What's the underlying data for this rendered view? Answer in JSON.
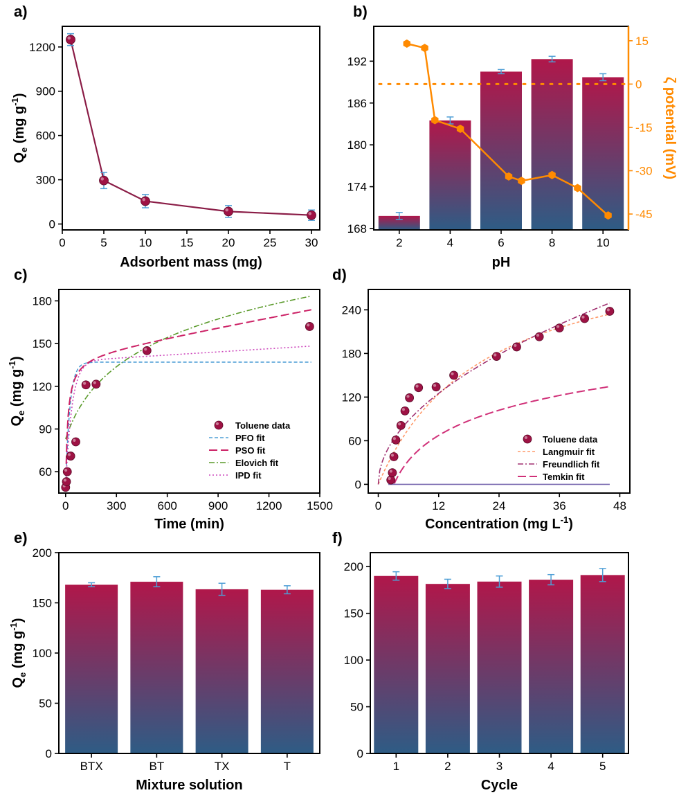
{
  "colors": {
    "bar_top": "#b0174a",
    "bar_bottom": "#2e5c85",
    "marker": "#9e1244",
    "line_a": "#8a1c46",
    "zeta": "#ff8a00",
    "error_bar": "#4f9fd6",
    "pfo": "#4f9fd6",
    "pso": "#cc2266",
    "elovich": "#5a9a2a",
    "ipd": "#cc44bb",
    "langmuir": "#ff9a6a",
    "freundlich": "#a03070",
    "temkin": "#d03078"
  },
  "chart_data": [
    {
      "panel": "a)",
      "type": "line",
      "xlabel": "Adsorbent mass (mg)",
      "ylabel": "Qe (mg g-1)",
      "ylabel_main": "Q",
      "ylabel_sub": "e",
      "ylabel_rest": " (mg g",
      "ylabel_sup": "-1",
      "ylabel_close": ")",
      "xlim": [
        0,
        31
      ],
      "ylim": [
        -40,
        1340
      ],
      "xticks": [
        "0",
        "5",
        "10",
        "15",
        "20",
        "25",
        "30"
      ],
      "yticks": [
        "0",
        "300",
        "600",
        "900",
        "1200"
      ],
      "x": [
        1,
        5,
        10,
        20,
        30
      ],
      "y": [
        1250,
        295,
        155,
        85,
        60
      ],
      "error": [
        40,
        55,
        45,
        40,
        35
      ]
    },
    {
      "panel": "b)",
      "type": "bar",
      "xlabel": "pH",
      "ylabel_right": "ζ potential (mV)",
      "categories": [
        "2",
        "4",
        "6",
        "8",
        "10"
      ],
      "values": [
        169.8,
        183.5,
        190.5,
        192.3,
        189.7
      ],
      "error": [
        0.5,
        0.5,
        0.3,
        0.4,
        0.5
      ],
      "ylim": [
        167.8,
        197
      ],
      "yticks": [
        "168",
        "174",
        "180",
        "186",
        "192"
      ],
      "y2lim": [
        -50.5,
        20
      ],
      "y2ticks": [
        "-45",
        "-30",
        "-15",
        "0",
        "15"
      ],
      "zeta_series": {
        "x": [
          2.3,
          3,
          3.4,
          4.4,
          6.3,
          6.8,
          8,
          9,
          10.2
        ],
        "y": [
          14,
          12.5,
          -12.5,
          -15.5,
          -32,
          -33.5,
          -31.5,
          -36,
          -45.5
        ]
      },
      "zero_line": 0
    },
    {
      "panel": "c)",
      "type": "scatter",
      "xlabel": "Time (min)",
      "ylabel_main": "Q",
      "ylabel_sub": "e",
      "ylabel_rest": " (mg g",
      "ylabel_sup": "-1",
      "ylabel_close": ")",
      "xlim": [
        -40,
        1500
      ],
      "ylim": [
        45,
        188
      ],
      "xticks": [
        "0",
        "300",
        "600",
        "900",
        "1200",
        "1500"
      ],
      "yticks": [
        "60",
        "90",
        "120",
        "150",
        "180"
      ],
      "series": [
        {
          "name": "Toluene data",
          "x": [
            0,
            5,
            10,
            30,
            60,
            120,
            180,
            480,
            1440
          ],
          "y": [
            49,
            53,
            60,
            71,
            81,
            121,
            121.5,
            145,
            162
          ]
        }
      ],
      "fits": {
        "PFO fit": {
          "Qe": 137,
          "k": 0.04,
          "y0": 49
        },
        "PSO fit": {
          "Qe": 141.8,
          "k": 0.00083,
          "y0": 49,
          "tail_slope": 0.0226
        },
        "Elovich fit": {
          "a": 83,
          "b": 36.6
        },
        "IPD fit": {
          "Qe": 137.5,
          "k": 0.027,
          "y0": 49,
          "tail_slope": 0.0074
        }
      },
      "legend": [
        "Toluene data",
        "PFO fit",
        "PSO fit",
        "Elovich fit",
        "IPD fit"
      ]
    },
    {
      "panel": "d)",
      "type": "scatter",
      "xlabel": "Concentration (mg L-1)",
      "xlabel_main": "Concentration (mg L",
      "xlabel_sup": "-1",
      "xlabel_close": ")",
      "xlim": [
        -2,
        50
      ],
      "ylim": [
        -12,
        268
      ],
      "xticks": [
        "0",
        "12",
        "24",
        "36",
        "48"
      ],
      "yticks": [
        "0",
        "60",
        "120",
        "180",
        "240"
      ],
      "series": [
        {
          "name": "Toluene data",
          "x": [
            2.5,
            2.8,
            3.1,
            3.5,
            4.5,
            5.3,
            6.2,
            8,
            11.5,
            15,
            23.5,
            27.5,
            32,
            36,
            41,
            46
          ],
          "y": [
            6,
            16,
            38,
            61,
            81,
            101,
            119,
            133,
            134,
            150,
            176,
            189,
            203,
            215,
            228,
            238
          ]
        }
      ],
      "fits": {
        "Langmuir fit": {
          "qm": 340,
          "KL": 0.048
        },
        "Freundlich fit": {
          "KF": 35,
          "n": 1.95
        },
        "Temkin fit": {
          "A": 0.32,
          "B": 50
        }
      },
      "legend": [
        "Toluene data",
        "Langmuir fit",
        "Freundlich fit",
        "Temkin fit"
      ]
    },
    {
      "panel": "e)",
      "type": "bar",
      "xlabel": "Mixture solution",
      "ylabel_main": "Q",
      "ylabel_sub": "e",
      "ylabel_rest": " (mg g",
      "ylabel_sup": "-1",
      "ylabel_close": ")",
      "categories": [
        "BTX",
        "BT",
        "TX",
        "T"
      ],
      "values": [
        168,
        171,
        163.5,
        163
      ],
      "error": [
        2,
        5,
        6,
        4
      ],
      "ylim": [
        0,
        200
      ],
      "yticks": [
        "0",
        "50",
        "100",
        "150",
        "200"
      ]
    },
    {
      "panel": "f)",
      "type": "bar",
      "xlabel": "Cycle",
      "categories": [
        "1",
        "2",
        "3",
        "4",
        "5"
      ],
      "values": [
        190,
        181.5,
        184,
        186,
        191
      ],
      "error": [
        4.5,
        5,
        6,
        5.5,
        7
      ],
      "ylim": [
        0,
        215
      ],
      "yticks": [
        "0",
        "50",
        "100",
        "150",
        "200"
      ]
    }
  ]
}
